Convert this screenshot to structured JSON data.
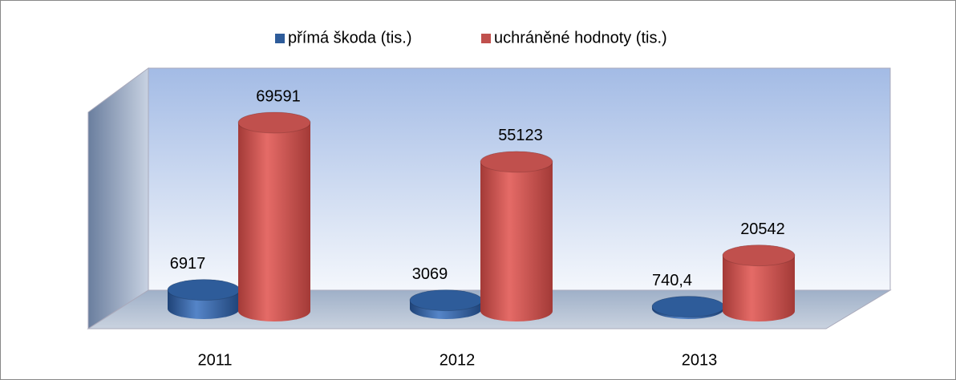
{
  "chart_data": {
    "type": "bar3d",
    "categories": [
      "2011",
      "2012",
      "2013"
    ],
    "series": [
      {
        "name": "přímá škoda (tis.)",
        "color": "#2e5c9a",
        "values": [
          6917,
          3069,
          740.4
        ],
        "value_labels": [
          "6917",
          "3069",
          "740,4"
        ]
      },
      {
        "name": "uchráněné hodnoty (tis.)",
        "color": "#c0504d",
        "values": [
          69591,
          55123,
          20542
        ]
      }
    ],
    "legend": "top"
  }
}
